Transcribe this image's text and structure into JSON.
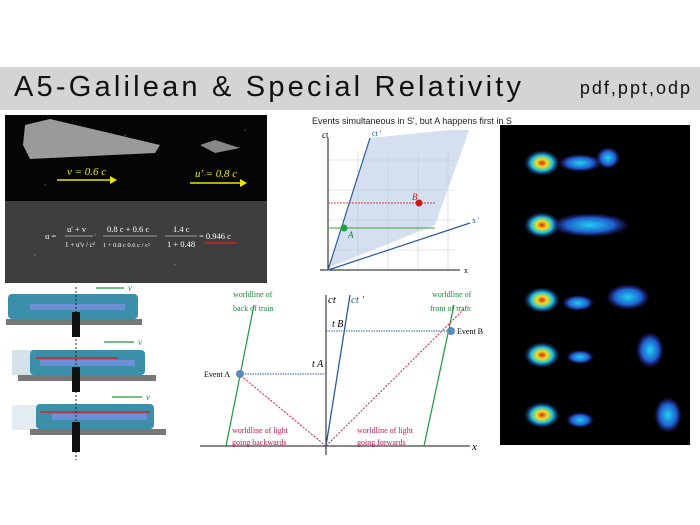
{
  "header": {
    "title": "A5-Galilean & Special Relativity",
    "formats": "pdf,ppt,odp"
  },
  "space_panel": {
    "v_label": "v = 0.6 c",
    "u_prime_label": "u' = 0.8 c",
    "equation": {
      "lhs": "u =",
      "f1_num": "u' + v",
      "f1_den": "1 + u'v / c²",
      "f2_num": "0.8 c + 0.6 c",
      "f2_den": "1 + 0.8 c 0.6 c / c²",
      "f3_num": "1.4 c",
      "f3_den": "1 + 0.48",
      "result": "= 0.946 c"
    },
    "accent_color": "#e8e800"
  },
  "train_panel": {
    "velocity_label": "v"
  },
  "minkowski_top": {
    "caption": "Events simultaneous in S', but A happens first in S",
    "axis_ct": "ct",
    "axis_ct_prime": "ct '",
    "axis_x": "x",
    "axis_x_prime": "x '",
    "event_a": "A",
    "event_b": "B"
  },
  "minkowski_bottom": {
    "axis_ct": "ct",
    "axis_ct_prime": "ct '",
    "axis_x": "x",
    "t_a": "t A",
    "t_b": "t B",
    "event_a": "Event A",
    "event_b": "Event B",
    "back_train": [
      "worldline of",
      "back of train"
    ],
    "front_train": [
      "worldline of",
      "front of train"
    ],
    "light_back": [
      "worldline of light",
      "going backwards"
    ],
    "light_fwd": [
      "worldline of light",
      "going forwards"
    ]
  },
  "heatmap_panel": {
    "rows": 5
  }
}
